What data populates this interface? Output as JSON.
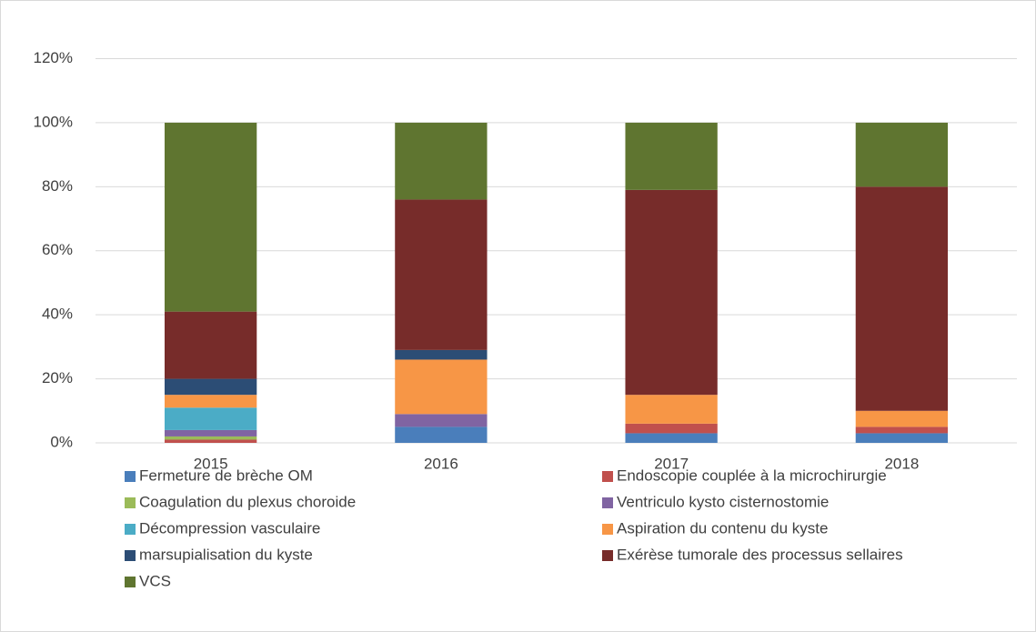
{
  "chart_data": {
    "type": "stacked_bar",
    "categories": [
      "2015",
      "2016",
      "2017",
      "2018"
    ],
    "series": [
      {
        "name": "Fermeture de brèche OM",
        "color": "#4a7ebb",
        "values": [
          0,
          5,
          3,
          3
        ]
      },
      {
        "name": "Endoscopie couplée à la microchirurgie",
        "color": "#c0504d",
        "values": [
          1,
          0,
          3,
          2
        ]
      },
      {
        "name": "Coagulation du plexus choroide",
        "color": "#9bbb59",
        "values": [
          1,
          0,
          0,
          0
        ]
      },
      {
        "name": "Ventriculo kysto cisternostomie",
        "color": "#8064a2",
        "values": [
          2,
          4,
          0,
          0
        ]
      },
      {
        "name": "Décompression vasculaire",
        "color": "#4bacc6",
        "values": [
          7,
          0,
          0,
          0
        ]
      },
      {
        "name": "Aspiration du contenu du kyste",
        "color": "#f79646",
        "values": [
          4,
          17,
          9,
          5
        ]
      },
      {
        "name": "marsupialisation du kyste",
        "color": "#2c4d75",
        "values": [
          5,
          3,
          0,
          0
        ]
      },
      {
        "name": "Exérèse tumorale des processus sellaires",
        "color": "#772c2a",
        "values": [
          21,
          47,
          64,
          70
        ]
      },
      {
        "name": "VCS",
        "color": "#5f7530",
        "values": [
          59,
          24,
          21,
          20
        ]
      }
    ],
    "ylim": [
      0,
      120
    ],
    "yticks": [
      {
        "value": 0,
        "label": "0%"
      },
      {
        "value": 20,
        "label": "20%"
      },
      {
        "value": 40,
        "label": "40%"
      },
      {
        "value": 60,
        "label": "60%"
      },
      {
        "value": 80,
        "label": "80%"
      },
      {
        "value": 100,
        "label": "100%"
      },
      {
        "value": 120,
        "label": "120%"
      }
    ],
    "grid": true
  }
}
